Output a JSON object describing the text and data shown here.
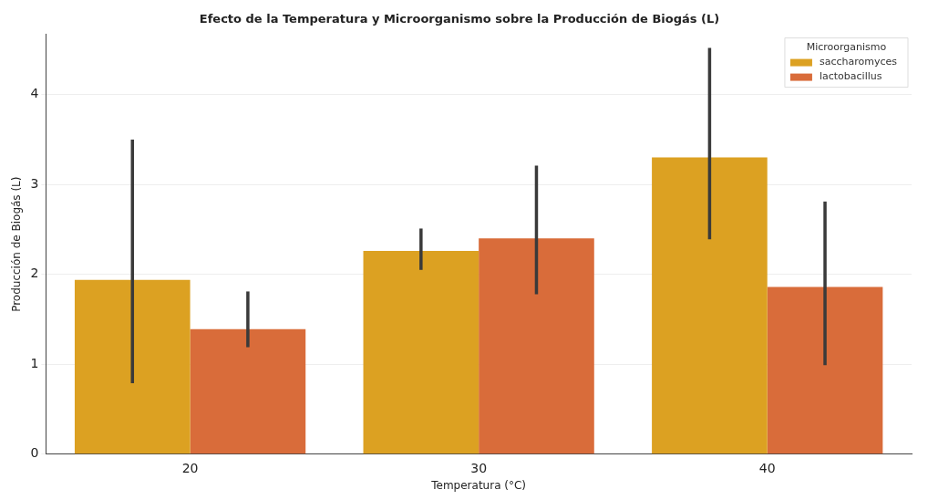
{
  "chart_data": {
    "type": "bar",
    "title": "Efecto de la Temperatura y Microorganismo sobre la Producción de Biogás (L)",
    "xlabel": "Temperatura (°C)",
    "ylabel": "Producción de Biogás (L)",
    "legend_title": "Microorganismo",
    "categories": [
      "20",
      "30",
      "40"
    ],
    "series": [
      {
        "name": "saccharomyces",
        "color": "#dca122",
        "values": [
          1.94,
          2.26,
          3.3
        ],
        "errors": [
          [
            0.79,
            3.5
          ],
          [
            2.05,
            2.51
          ],
          [
            2.39,
            4.52
          ]
        ]
      },
      {
        "name": "lactobacillus",
        "color": "#d96c3a",
        "values": [
          1.39,
          2.4,
          1.86
        ],
        "errors": [
          [
            1.19,
            1.81
          ],
          [
            1.78,
            3.21
          ],
          [
            0.99,
            2.81
          ]
        ]
      }
    ],
    "ylim": [
      0,
      4.67
    ],
    "yticks": [
      0,
      1,
      2,
      3,
      4
    ],
    "grid": "y",
    "legend": "top right"
  }
}
